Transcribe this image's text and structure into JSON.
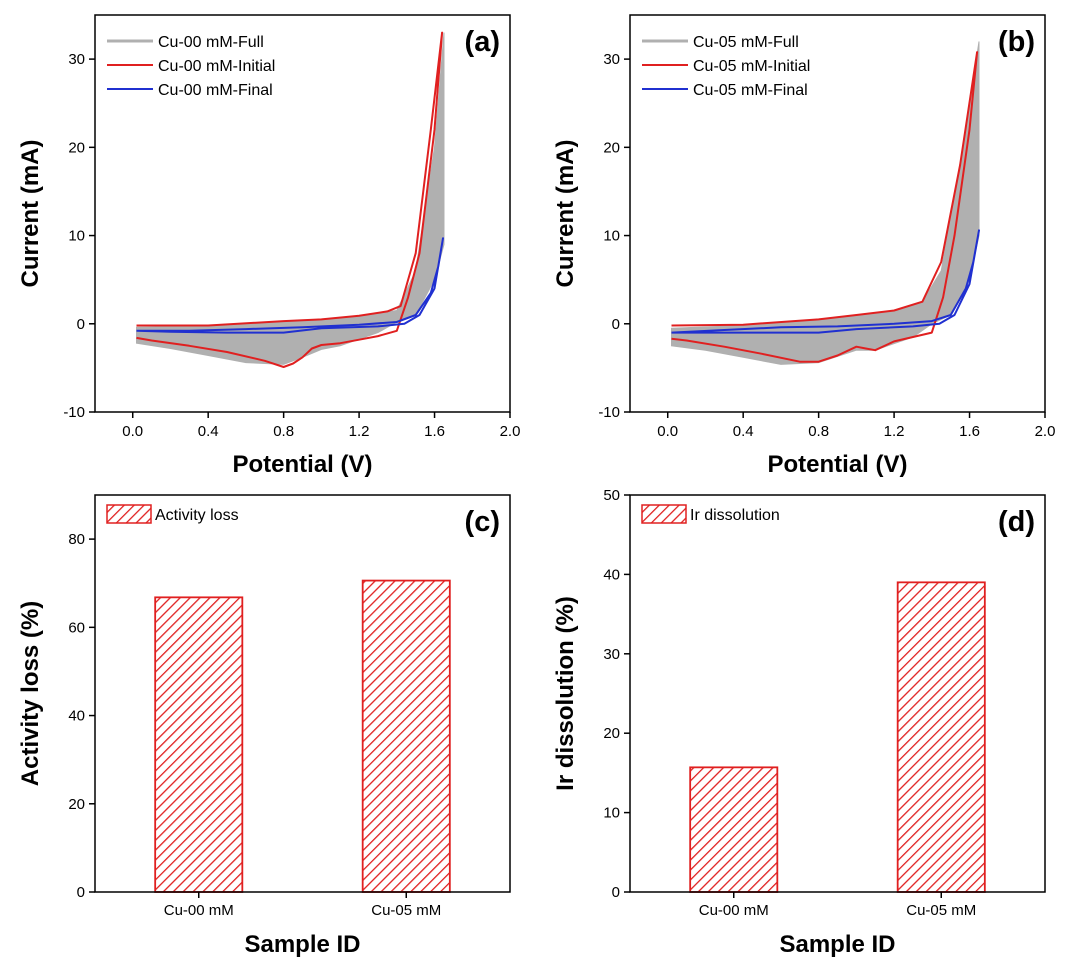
{
  "chart_data": [
    {
      "panel_label": "(a)",
      "type": "line",
      "xlabel": "Potential (V)",
      "ylabel": "Current (mA)",
      "xlim": [
        -0.2,
        2.0
      ],
      "ylim": [
        -10,
        35
      ],
      "x_ticks": [
        "0.0",
        "0.4",
        "0.8",
        "1.2",
        "1.6",
        "2.0"
      ],
      "y_ticks": [
        "-10",
        "0",
        "10",
        "20",
        "30"
      ],
      "legend_position": "top-left",
      "series": [
        {
          "name": "Cu-00 mM-Full",
          "color": "#b0b0b0",
          "style": "filled-band",
          "upper": [
            [
              0.02,
              -0.4
            ],
            [
              0.4,
              -0.3
            ],
            [
              0.8,
              0.2
            ],
            [
              1.0,
              0.4
            ],
            [
              1.2,
              0.9
            ],
            [
              1.4,
              1.5
            ],
            [
              1.5,
              6.0
            ],
            [
              1.6,
              20.0
            ],
            [
              1.65,
              33.0
            ]
          ],
          "lower": [
            [
              1.65,
              9.0
            ],
            [
              1.6,
              5.0
            ],
            [
              1.5,
              1.0
            ],
            [
              1.4,
              0.2
            ],
            [
              1.3,
              -1.0
            ],
            [
              1.1,
              -2.5
            ],
            [
              1.0,
              -2.9
            ],
            [
              0.9,
              -3.8
            ],
            [
              0.8,
              -4.6
            ],
            [
              0.6,
              -4.4
            ],
            [
              0.4,
              -3.6
            ],
            [
              0.2,
              -2.8
            ],
            [
              0.02,
              -2.2
            ]
          ]
        },
        {
          "name": "Cu-00 mM-Initial",
          "color": "#e02020",
          "anodic": [
            [
              0.02,
              -0.2
            ],
            [
              0.4,
              -0.2
            ],
            [
              0.8,
              0.3
            ],
            [
              1.0,
              0.5
            ],
            [
              1.2,
              0.9
            ],
            [
              1.35,
              1.4
            ],
            [
              1.42,
              2.0
            ],
            [
              1.5,
              8.0
            ],
            [
              1.58,
              22.0
            ],
            [
              1.64,
              33.0
            ]
          ],
          "cathodic": [
            [
              1.64,
              33.0
            ],
            [
              1.6,
              22.0
            ],
            [
              1.52,
              8.0
            ],
            [
              1.46,
              3.0
            ],
            [
              1.4,
              -0.8
            ],
            [
              1.3,
              -1.4
            ],
            [
              1.2,
              -1.8
            ],
            [
              1.1,
              -2.2
            ],
            [
              1.0,
              -2.4
            ],
            [
              0.95,
              -2.8
            ],
            [
              0.9,
              -3.8
            ],
            [
              0.85,
              -4.5
            ],
            [
              0.8,
              -4.9
            ],
            [
              0.7,
              -4.2
            ],
            [
              0.5,
              -3.2
            ],
            [
              0.3,
              -2.5
            ],
            [
              0.1,
              -1.9
            ],
            [
              0.02,
              -1.6
            ]
          ]
        },
        {
          "name": "Cu-00 mM-Final",
          "color": "#2030d0",
          "anodic": [
            [
              0.02,
              -0.8
            ],
            [
              0.3,
              -0.8
            ],
            [
              0.6,
              -0.6
            ],
            [
              0.9,
              -0.4
            ],
            [
              1.2,
              -0.1
            ],
            [
              1.4,
              0.2
            ],
            [
              1.5,
              1.0
            ],
            [
              1.58,
              3.5
            ],
            [
              1.62,
              6.5
            ],
            [
              1.645,
              9.7
            ]
          ],
          "cathodic": [
            [
              1.645,
              9.7
            ],
            [
              1.6,
              4.0
            ],
            [
              1.52,
              1.0
            ],
            [
              1.44,
              0.0
            ],
            [
              1.3,
              -0.3
            ],
            [
              1.0,
              -0.5
            ],
            [
              0.8,
              -1.0
            ],
            [
              0.5,
              -1.0
            ],
            [
              0.2,
              -0.9
            ],
            [
              0.02,
              -0.8
            ]
          ]
        }
      ]
    },
    {
      "panel_label": "(b)",
      "type": "line",
      "xlabel": "Potential (V)",
      "ylabel": "Current (mA)",
      "xlim": [
        -0.2,
        2.0
      ],
      "ylim": [
        -10,
        35
      ],
      "x_ticks": [
        "0.0",
        "0.4",
        "0.8",
        "1.2",
        "1.6",
        "2.0"
      ],
      "y_ticks": [
        "-10",
        "0",
        "10",
        "20",
        "30"
      ],
      "legend_position": "top-left",
      "series": [
        {
          "name": "Cu-05 mM-Full",
          "color": "#b0b0b0",
          "style": "filled-band",
          "upper": [
            [
              0.02,
              -0.5
            ],
            [
              0.4,
              -0.2
            ],
            [
              0.8,
              0.4
            ],
            [
              1.0,
              0.9
            ],
            [
              1.2,
              1.4
            ],
            [
              1.35,
              2.5
            ],
            [
              1.45,
              6.0
            ],
            [
              1.55,
              18.0
            ],
            [
              1.65,
              32.0
            ]
          ],
          "lower": [
            [
              1.65,
              10.0
            ],
            [
              1.6,
              5.0
            ],
            [
              1.5,
              1.0
            ],
            [
              1.4,
              0.0
            ],
            [
              1.3,
              -1.5
            ],
            [
              1.1,
              -3.0
            ],
            [
              1.0,
              -3.0
            ],
            [
              0.8,
              -4.4
            ],
            [
              0.6,
              -4.6
            ],
            [
              0.4,
              -3.8
            ],
            [
              0.2,
              -3.0
            ],
            [
              0.02,
              -2.5
            ]
          ]
        },
        {
          "name": "Cu-05 mM-Initial",
          "color": "#e02020",
          "anodic": [
            [
              0.02,
              -0.2
            ],
            [
              0.4,
              -0.1
            ],
            [
              0.8,
              0.5
            ],
            [
              1.0,
              1.0
            ],
            [
              1.2,
              1.5
            ],
            [
              1.35,
              2.5
            ],
            [
              1.45,
              7.0
            ],
            [
              1.55,
              18.0
            ],
            [
              1.64,
              30.8
            ]
          ],
          "cathodic": [
            [
              1.64,
              30.8
            ],
            [
              1.6,
              22.0
            ],
            [
              1.52,
              10.0
            ],
            [
              1.46,
              3.0
            ],
            [
              1.4,
              -1.0
            ],
            [
              1.3,
              -1.5
            ],
            [
              1.2,
              -2.0
            ],
            [
              1.1,
              -3.0
            ],
            [
              1.05,
              -2.8
            ],
            [
              1.0,
              -2.6
            ],
            [
              0.9,
              -3.6
            ],
            [
              0.8,
              -4.3
            ],
            [
              0.7,
              -4.3
            ],
            [
              0.5,
              -3.4
            ],
            [
              0.3,
              -2.6
            ],
            [
              0.1,
              -1.9
            ],
            [
              0.02,
              -1.7
            ]
          ]
        },
        {
          "name": "Cu-05 mM-Final",
          "color": "#2030d0",
          "anodic": [
            [
              0.02,
              -1.0
            ],
            [
              0.3,
              -0.7
            ],
            [
              0.6,
              -0.4
            ],
            [
              0.9,
              -0.3
            ],
            [
              1.2,
              0.0
            ],
            [
              1.4,
              0.3
            ],
            [
              1.5,
              1.0
            ],
            [
              1.58,
              4.0
            ],
            [
              1.62,
              7.0
            ],
            [
              1.65,
              10.6
            ]
          ],
          "cathodic": [
            [
              1.65,
              10.6
            ],
            [
              1.6,
              4.5
            ],
            [
              1.52,
              1.0
            ],
            [
              1.44,
              0.0
            ],
            [
              1.3,
              -0.3
            ],
            [
              1.0,
              -0.6
            ],
            [
              0.8,
              -1.0
            ],
            [
              0.5,
              -1.0
            ],
            [
              0.2,
              -1.0
            ],
            [
              0.02,
              -1.0
            ]
          ]
        }
      ]
    },
    {
      "panel_label": "(c)",
      "type": "bar",
      "xlabel": "Sample ID",
      "ylabel": "Activity loss (%)",
      "categories": [
        "Cu-00 mM",
        "Cu-05 mM"
      ],
      "ylim": [
        0,
        90
      ],
      "y_ticks": [
        "0",
        "20",
        "40",
        "60",
        "80"
      ],
      "legend_position": "top-left",
      "series": [
        {
          "name": "Activity loss",
          "color": "#e02020",
          "pattern": "hatched",
          "values": [
            66.8,
            70.6
          ]
        }
      ]
    },
    {
      "panel_label": "(d)",
      "type": "bar",
      "xlabel": "Sample ID",
      "ylabel": "Ir dissolution (%)",
      "categories": [
        "Cu-00 mM",
        "Cu-05 mM"
      ],
      "ylim": [
        0,
        50
      ],
      "y_ticks": [
        "0",
        "10",
        "20",
        "30",
        "40",
        "50"
      ],
      "legend_position": "top-left",
      "series": [
        {
          "name": "Ir dissolution",
          "color": "#e02020",
          "pattern": "hatched",
          "values": [
            15.7,
            39.0
          ]
        }
      ]
    }
  ]
}
